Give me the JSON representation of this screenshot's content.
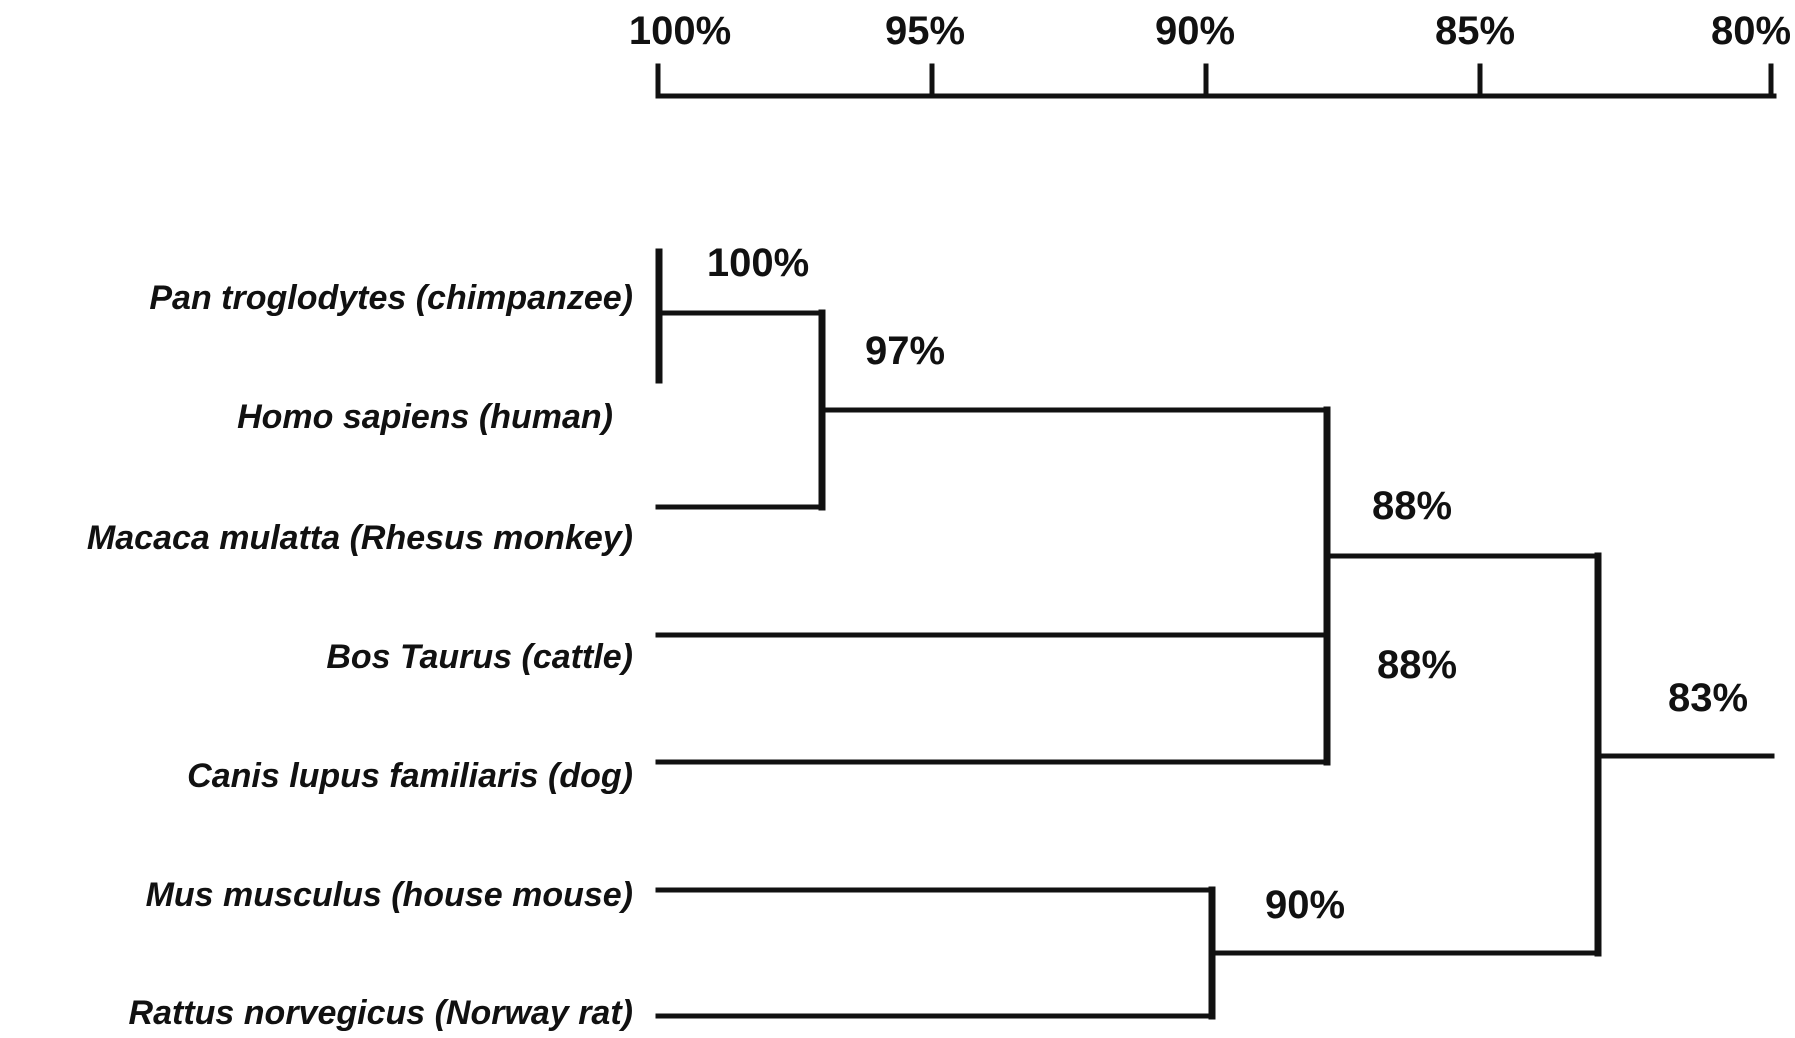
{
  "scale_axis": {
    "ticks": [
      "100%",
      "95%",
      "90%",
      "85%",
      "80%"
    ]
  },
  "species": [
    "Pan troglodytes (chimpanzee)",
    "Homo sapiens (human)",
    "Macaca mulatta (Rhesus monkey)",
    "Bos Taurus (cattle)",
    "Canis lupus familiaris (dog)",
    "Mus musculus (house mouse)",
    "Rattus norvegicus (Norway rat)"
  ],
  "nodes": [
    {
      "label": "100%",
      "value": 100,
      "joins": [
        "Pan troglodytes (chimpanzee)",
        "Homo sapiens (human)"
      ]
    },
    {
      "label": "97%",
      "value": 97,
      "joins": [
        "chimpanzee + human",
        "Macaca mulatta (Rhesus monkey)"
      ]
    },
    {
      "label": "88%",
      "value": 88,
      "joins": [
        "primates",
        "Bos Taurus (cattle)",
        "Canis lupus familiaris (dog)"
      ]
    },
    {
      "label": "88%",
      "value": 88,
      "joins": [
        "Bos Taurus (cattle)",
        "Canis lupus familiaris (dog)"
      ]
    },
    {
      "label": "90%",
      "value": 90,
      "joins": [
        "Mus musculus (house mouse)",
        "Rattus norvegicus (Norway rat)"
      ]
    },
    {
      "label": "83%",
      "value": 83,
      "joins": [
        "primates + cattle + dog",
        "rodents"
      ]
    }
  ]
}
